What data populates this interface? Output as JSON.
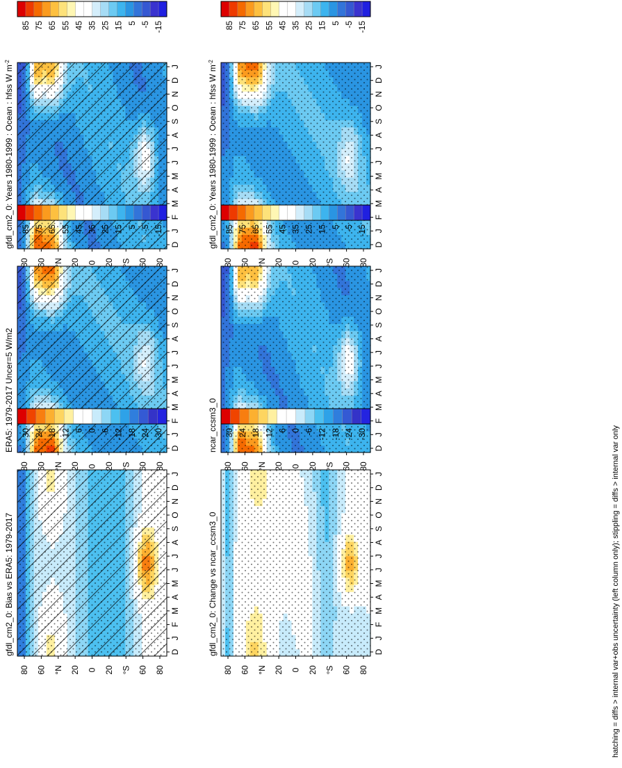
{
  "figure": {
    "footnote": "hatching = diffs > internal var+obs uncertainty (left column only); stippling = diffs > internal var only",
    "colors": {
      "abs_scale": [
        "#dd0000",
        "#ee3a00",
        "#f56a00",
        "#fb9b1e",
        "#fdc040",
        "#fde27a",
        "#fff7b4",
        "#ffffff",
        "#ffffff",
        "#d4eefb",
        "#a6dcf5",
        "#6ccaf2",
        "#3db4ee",
        "#2a95e2",
        "#3274d9",
        "#3558d2",
        "#3a33cf",
        "#2020e0"
      ],
      "diff_scale": [
        "#dd0000",
        "#f04400",
        "#f87e10",
        "#fcb030",
        "#fdd560",
        "#fff0a0",
        "#ffffff",
        "#ffffff",
        "#c8ebfb",
        "#8dd6f5",
        "#4cc0f0",
        "#2ea2e8",
        "#2f7edd",
        "#345ad4",
        "#3433c8",
        "#2424e0"
      ]
    }
  },
  "chart_data": [
    {
      "type": "heatmap",
      "title": "gfdl_cm2_0: Years 1980-1999 : Ocean : hfss W m",
      "title_sup": "-2",
      "x_axis": "latitude",
      "y_axis": "month",
      "lat_ticks": [
        "80",
        "60",
        "°N",
        "20",
        "0",
        "20",
        "°S",
        "60",
        "80"
      ],
      "month_ticks": [
        "D",
        "J",
        "F",
        "M",
        "A",
        "M",
        "J",
        "J",
        "A",
        "S",
        "O",
        "N",
        "D",
        "J"
      ],
      "colorbar_ticks": [
        "85",
        "75",
        "65",
        "55",
        "45",
        "35",
        "25",
        "15",
        "5",
        "-5",
        "-15"
      ],
      "value_range": [
        -15,
        90
      ],
      "hatching": true,
      "stippling": true
    },
    {
      "type": "heatmap",
      "title": "gfdl_cm2_0: Years 1980-1999 : Ocean : hfss W m",
      "title_sup": "-2",
      "x_axis": "latitude",
      "y_axis": "month",
      "lat_ticks": [
        "80",
        "60",
        "°N",
        "20",
        "0",
        "20",
        "°S",
        "60",
        "80"
      ],
      "month_ticks": [
        "D",
        "J",
        "F",
        "M",
        "A",
        "M",
        "J",
        "J",
        "A",
        "S",
        "O",
        "N",
        "D",
        "J"
      ],
      "colorbar_ticks": [
        "85",
        "75",
        "65",
        "55",
        "45",
        "35",
        "25",
        "15",
        "5",
        "-5",
        "-15"
      ],
      "value_range": [
        -15,
        90
      ],
      "hatching": false,
      "stippling": true
    },
    {
      "type": "heatmap",
      "title": "ERA5: 1979-2017 Uncer=5 W/m2",
      "title_sup": "",
      "x_axis": "latitude",
      "y_axis": "month",
      "lat_ticks": [
        "80",
        "60",
        "°N",
        "20",
        "0",
        "20",
        "°S",
        "60",
        "80"
      ],
      "month_ticks": [
        "D",
        "J",
        "F",
        "M",
        "A",
        "M",
        "J",
        "J",
        "A",
        "S",
        "O",
        "N",
        "D",
        "J"
      ],
      "colorbar_ticks": [
        "85",
        "75",
        "65",
        "55",
        "45",
        "35",
        "25",
        "15",
        "5",
        "-5",
        "-15"
      ],
      "value_range": [
        -15,
        90
      ],
      "hatching": true,
      "stippling": true
    },
    {
      "type": "heatmap",
      "title": "ncar_ccsm3_0",
      "title_sup": "",
      "x_axis": "latitude",
      "y_axis": "month",
      "lat_ticks": [
        "80",
        "60",
        "°N",
        "20",
        "0",
        "20",
        "°S",
        "60",
        "80"
      ],
      "month_ticks": [
        "D",
        "J",
        "F",
        "M",
        "A",
        "M",
        "J",
        "J",
        "A",
        "S",
        "O",
        "N",
        "D",
        "J"
      ],
      "colorbar_ticks": [
        "85",
        "75",
        "65",
        "55",
        "45",
        "35",
        "25",
        "15",
        "5",
        "-5",
        "-15"
      ],
      "value_range": [
        -15,
        90
      ],
      "hatching": false,
      "stippling": true
    },
    {
      "type": "heatmap",
      "title": "gfdl_cm2_0: Bias vs ERA5: 1979-2017",
      "title_sup": "",
      "x_axis": "latitude",
      "y_axis": "month",
      "lat_ticks": [
        "80",
        "60",
        "°N",
        "20",
        "0",
        "20",
        "°S",
        "60",
        "80"
      ],
      "month_ticks": [
        "D",
        "J",
        "F",
        "M",
        "A",
        "M",
        "J",
        "J",
        "A",
        "S",
        "O",
        "N",
        "D",
        "J"
      ],
      "colorbar_ticks": [
        "30",
        "24",
        "18",
        "12",
        "6",
        "0",
        "-6",
        "-12",
        "-18",
        "-24",
        "-30"
      ],
      "value_range": [
        -30,
        30
      ],
      "hatching": true,
      "stippling": true
    },
    {
      "type": "heatmap",
      "title": "gfdl_cm2_0: Change vs ncar_ccsm3_0",
      "title_sup": "",
      "x_axis": "latitude",
      "y_axis": "month",
      "lat_ticks": [
        "80",
        "60",
        "°N",
        "20",
        "0",
        "20",
        "°S",
        "60",
        "80"
      ],
      "month_ticks": [
        "D",
        "J",
        "F",
        "M",
        "A",
        "M",
        "J",
        "J",
        "A",
        "S",
        "O",
        "N",
        "D",
        "J"
      ],
      "colorbar_ticks": [
        "30",
        "24",
        "18",
        "12",
        "6",
        "0",
        "-6",
        "-12",
        "-18",
        "-24",
        "-30"
      ],
      "value_range": [
        -30,
        30
      ],
      "hatching": false,
      "stippling": true
    }
  ]
}
